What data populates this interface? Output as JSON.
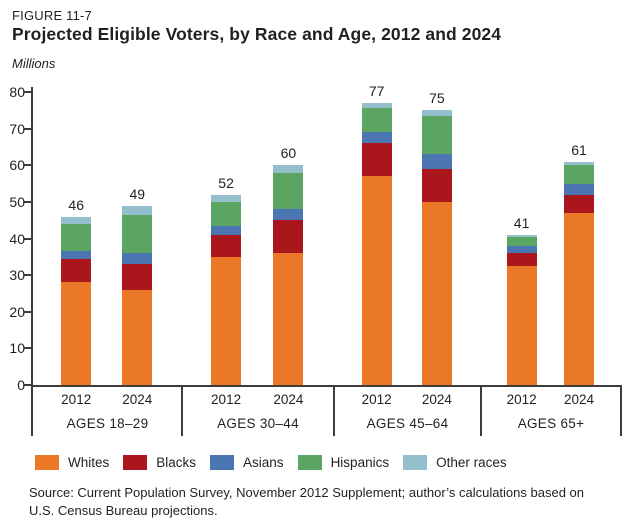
{
  "figure": {
    "label": "FIGURE 11-7",
    "title": "Projected Eligible Voters, by Race and Age, 2012 and 2024",
    "units_label": "Millions",
    "source": "Source: Current Population Survey, November 2012 Supplement; author’s calculations based on U.S. Census Bureau projections."
  },
  "colors": {
    "text": "#231f20",
    "axis": "#3e3c3d",
    "background": "#ffffff"
  },
  "chart_data": {
    "type": "bar",
    "stacked": true,
    "title": "Projected Eligible Voters, by Race and Age, 2012 and 2024",
    "units": "Millions",
    "ylim": [
      0,
      80
    ],
    "ytick_interval": 10,
    "grid": false,
    "legend_position": "bottom",
    "group_labels": [
      "AGES 18–29",
      "AGES 30–44",
      "AGES 45–64",
      "AGES 65+"
    ],
    "years_per_group": [
      "2012",
      "2024"
    ],
    "bar_totals": [
      46,
      49,
      52,
      60,
      77,
      75,
      41,
      61
    ],
    "series": [
      {
        "name": "Whites",
        "color": "#ea7826",
        "values": [
          28,
          26,
          35,
          36,
          57,
          50,
          32.5,
          47
        ]
      },
      {
        "name": "Blacks",
        "color": "#aa161b",
        "values": [
          6.5,
          7,
          6,
          9,
          9,
          9,
          3.5,
          5
        ]
      },
      {
        "name": "Asians",
        "color": "#4c76b2",
        "values": [
          2,
          3,
          2.5,
          3,
          3,
          4,
          2,
          3
        ]
      },
      {
        "name": "Hispanics",
        "color": "#5ba563",
        "values": [
          7.5,
          10.5,
          6.5,
          10,
          6.5,
          10.5,
          2.5,
          5
        ]
      },
      {
        "name": "Other races",
        "color": "#92bfcb",
        "values": [
          2,
          2.5,
          2,
          2,
          1.5,
          1.5,
          0.5,
          1
        ]
      }
    ]
  }
}
